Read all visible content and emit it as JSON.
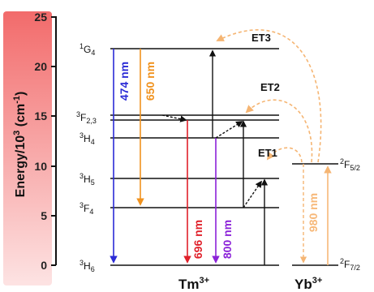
{
  "axis": {
    "title": "Energy/10",
    "title_sup": "3",
    "title_unit": " (cm",
    "title_unit_sup": "-1",
    "title_close": ")",
    "ticks": [
      "0",
      "5",
      "10",
      "15",
      "20",
      "25"
    ]
  },
  "tm_levels": [
    {
      "label": "3H6",
      "main": "H",
      "pre": "3",
      "sub": "6",
      "energy": 0
    },
    {
      "label": "3F4",
      "main": "F",
      "pre": "3",
      "sub": "4",
      "energy": 5.6
    },
    {
      "label": "3H5",
      "main": "H",
      "pre": "3",
      "sub": "5",
      "energy": 8.3
    },
    {
      "label": "3H4",
      "main": "H",
      "pre": "3",
      "sub": "4",
      "energy": 12.6
    },
    {
      "label": "3F2,3",
      "main": "F",
      "pre": "3",
      "sub": "2,3",
      "energy": 14.8
    },
    {
      "label": "1G4",
      "main": "G",
      "pre": "1",
      "sub": "4",
      "energy": 21.3
    }
  ],
  "yb_levels": [
    {
      "label": "2F7/2",
      "main": "F",
      "pre": "2",
      "sub": "7/2",
      "energy": 0
    },
    {
      "label": "2F5/2",
      "main": "F",
      "pre": "2",
      "sub": "5/2",
      "energy": 10.2
    }
  ],
  "emissions": [
    {
      "label": "474 nm",
      "color": "#2b2bd6"
    },
    {
      "label": "650 nm",
      "color": "#f0921e"
    },
    {
      "label": "696 nm",
      "color": "#e0202a"
    },
    {
      "label": "800 nm",
      "color": "#8b22d8"
    }
  ],
  "excitation": {
    "label": "980 nm",
    "color": "#f7b878"
  },
  "transfer_labels": [
    "ET1",
    "ET2",
    "ET3"
  ],
  "ions": {
    "tm_main": "Tm",
    "tm_sup": "3+",
    "yb_main": "Yb",
    "yb_sup": "3+"
  },
  "colors": {
    "axis_bar_top": "#f26b6b",
    "axis_bar_bottom": "#fde3e3",
    "energy_transfer": "#f5b573",
    "line": "#111111"
  }
}
